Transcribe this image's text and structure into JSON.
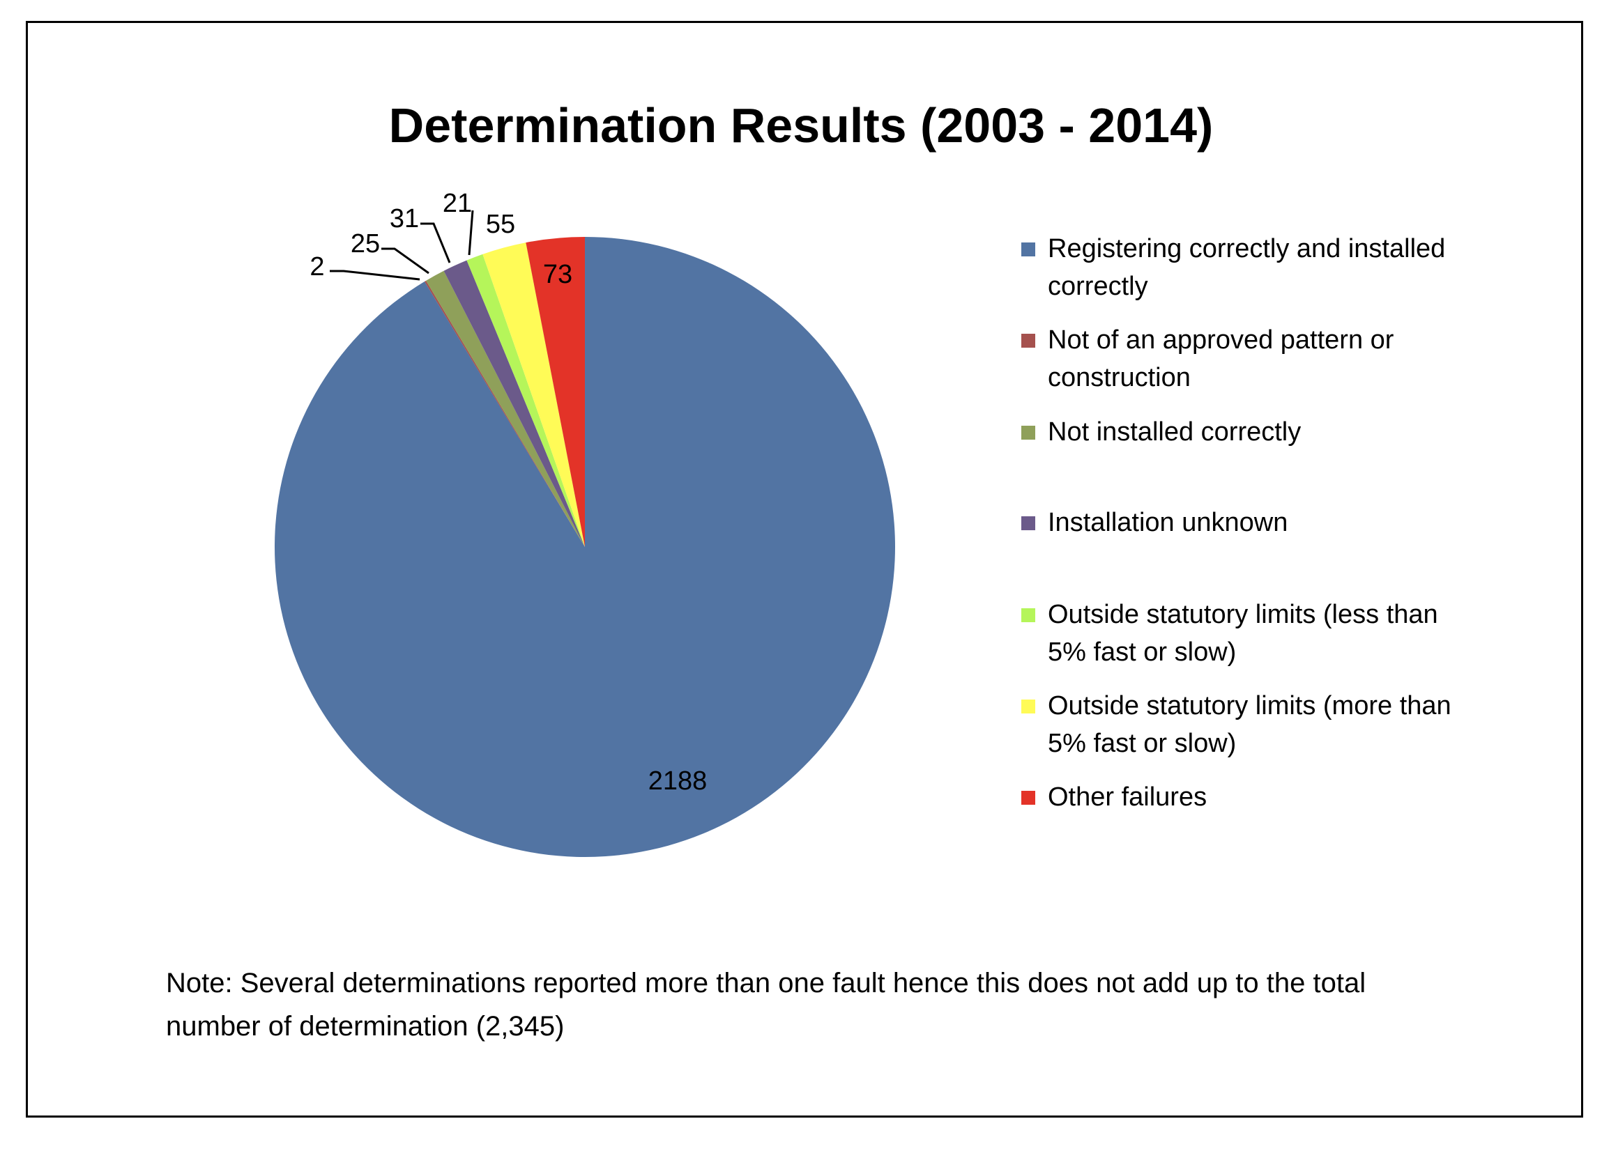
{
  "chart_data": {
    "type": "pie",
    "title": "Determination Results (2003 - 2014)",
    "start_angle": "top, clockwise",
    "slices": [
      {
        "label": "Registering correctly and installed correctly",
        "value": 2188,
        "color": "#5274A3"
      },
      {
        "label": "Not of an approved pattern or construction",
        "value": 2,
        "color": "#A5514E"
      },
      {
        "label": "Not installed correctly",
        "value": 25,
        "color": "#8FA05A"
      },
      {
        "label": "Installation unknown",
        "value": 31,
        "color": "#6B5A8A"
      },
      {
        "label": "Outside statutory limits (less than 5% fast or slow)",
        "value": 21,
        "color": "#B5F55A"
      },
      {
        "label": "Outside statutory limits (more than 5% fast or slow)",
        "value": 55,
        "color": "#FFFB57"
      },
      {
        "label": "Other failures",
        "value": 73,
        "color": "#E33328"
      }
    ],
    "legend_position": "right"
  },
  "note": "Note: Several determinations reported more than one fault hence this does not add up to the total number of determination (2,345)"
}
